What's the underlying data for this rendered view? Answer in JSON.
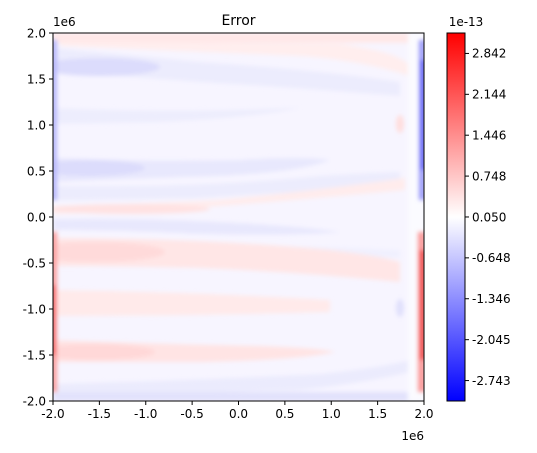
{
  "chart_data": {
    "type": "heatmap",
    "title": "Error",
    "xlabel": "",
    "ylabel": "",
    "x_offset_label": "1e6",
    "y_offset_label": "1e6",
    "xlim": [
      -2.0,
      2.0
    ],
    "ylim": [
      -2.0,
      2.0
    ],
    "x_ticks": [
      "-2.0",
      "-1.5",
      "-1.0",
      "-0.5",
      "0.0",
      "0.5",
      "1.0",
      "1.5",
      "2.0"
    ],
    "y_ticks": [
      "-2.0",
      "-1.5",
      "-1.0",
      "-0.5",
      "0.0",
      "0.5",
      "1.0",
      "1.5",
      "2.0"
    ],
    "colorbar": {
      "offset_label": "1e-13",
      "colormap": "bwr",
      "range": [
        -3.092,
        3.191
      ],
      "ticks": [
        "-2.743",
        "-2.045",
        "-1.346",
        "-0.648",
        "0.050",
        "0.748",
        "1.446",
        "2.144",
        "2.842"
      ],
      "tick_values": [
        -2.743,
        -2.045,
        -1.346,
        -0.648,
        0.05,
        0.748,
        1.446,
        2.144,
        2.842
      ],
      "min_color": "#0000ff",
      "mid_color": "#ffffff",
      "max_color": "#ff0000"
    },
    "grid": false,
    "legend": "none"
  }
}
